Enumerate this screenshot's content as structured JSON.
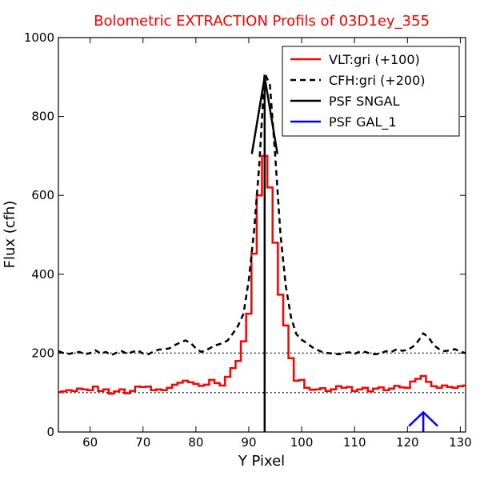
{
  "chart_data": {
    "type": "line",
    "title": "Bolometric EXTRACTION Profils of 03D1ey_355",
    "xlabel": "Y Pixel",
    "ylabel": "Flux (cfh)",
    "xlim": [
      54,
      131
    ],
    "ylim": [
      0,
      1000
    ],
    "x_ticks": [
      60,
      70,
      80,
      90,
      100,
      110,
      120,
      130
    ],
    "y_ticks": [
      0,
      200,
      400,
      600,
      800,
      1000
    ],
    "grid": false,
    "legend_position": "top-right",
    "colors": {
      "title": "#ff0000",
      "vlt": "#ff0000",
      "cfh": "#000000",
      "psf_sngal": "#000000",
      "psf_gal1": "#0000ff"
    },
    "legend": [
      {
        "label": "VLT:gri (+100)",
        "style": "solid",
        "color": "#ff0000"
      },
      {
        "label": "CFH:gri (+200)",
        "style": "dashed",
        "color": "#000000"
      },
      {
        "label": "PSF SNGAL",
        "style": "solid",
        "color": "#000000"
      },
      {
        "label": "PSF GAL_1",
        "style": "solid",
        "color": "#0000ff"
      }
    ],
    "baselines": [
      100,
      200
    ],
    "series": [
      {
        "name": "VLT:gri (+100)",
        "style": "steps",
        "x": [
          54,
          55,
          56,
          57,
          58,
          59,
          60,
          61,
          62,
          63,
          64,
          65,
          66,
          67,
          68,
          69,
          70,
          71,
          72,
          73,
          74,
          75,
          76,
          77,
          78,
          79,
          80,
          81,
          82,
          83,
          84,
          85,
          86,
          87,
          88,
          89,
          90,
          91,
          92,
          93,
          94,
          95,
          96,
          97,
          98,
          99,
          100,
          101,
          102,
          103,
          104,
          105,
          106,
          107,
          108,
          109,
          110,
          111,
          112,
          113,
          114,
          115,
          116,
          117,
          118,
          119,
          120,
          121,
          122,
          123,
          124,
          125,
          126,
          127,
          128,
          129,
          130,
          131
        ],
        "values": [
          101,
          103,
          106,
          104,
          110,
          108,
          106,
          115,
          104,
          108,
          97,
          103,
          108,
          98,
          104,
          115,
          114,
          115,
          106,
          108,
          106,
          112,
          120,
          125,
          130,
          126,
          122,
          117,
          120,
          132,
          124,
          118,
          140,
          162,
          180,
          230,
          300,
          452,
          600,
          700,
          620,
          480,
          348,
          270,
          187,
          130,
          132,
          112,
          107,
          108,
          111,
          104,
          108,
          116,
          112,
          114,
          104,
          108,
          112,
          103,
          110,
          113,
          106,
          110,
          117,
          113,
          112,
          128,
          135,
          142,
          127,
          116,
          112,
          118,
          114,
          112,
          116,
          118
        ]
      },
      {
        "name": "CFH:gri (+200)",
        "style": "dashed",
        "x": [
          54,
          55,
          56,
          57,
          58,
          59,
          60,
          61,
          62,
          63,
          64,
          65,
          66,
          67,
          68,
          69,
          70,
          71,
          72,
          73,
          74,
          75,
          76,
          77,
          78,
          79,
          80,
          81,
          82,
          83,
          84,
          85,
          86,
          87,
          88,
          89,
          90,
          91,
          92,
          93,
          94,
          95,
          96,
          97,
          98,
          99,
          100,
          101,
          102,
          103,
          104,
          105,
          106,
          107,
          108,
          109,
          110,
          111,
          112,
          113,
          114,
          115,
          116,
          117,
          118,
          119,
          120,
          121,
          122,
          123,
          124,
          125,
          126,
          127,
          128,
          129,
          130,
          131
        ],
        "values": [
          205,
          200,
          198,
          201,
          203,
          197,
          200,
          207,
          199,
          203,
          195,
          201,
          205,
          198,
          203,
          207,
          199,
          197,
          204,
          209,
          210,
          212,
          220,
          227,
          232,
          226,
          212,
          203,
          208,
          215,
          221,
          225,
          232,
          250,
          270,
          300,
          385,
          510,
          680,
          910,
          880,
          700,
          500,
          370,
          290,
          248,
          234,
          225,
          215,
          208,
          202,
          200,
          199,
          197,
          200,
          202,
          198,
          204,
          203,
          199,
          197,
          200,
          205,
          203,
          210,
          206,
          208,
          216,
          230,
          250,
          240,
          220,
          210,
          205,
          207,
          210,
          204,
          200
        ]
      }
    ],
    "markers": [
      {
        "name": "PSF SNGAL",
        "x": 93,
        "from": 0,
        "to": 900,
        "head": 190,
        "color": "#000000"
      },
      {
        "name": "PSF GAL_1",
        "x": 123,
        "from": 0,
        "to": 50,
        "head": 30,
        "color": "#0000ff"
      }
    ]
  }
}
